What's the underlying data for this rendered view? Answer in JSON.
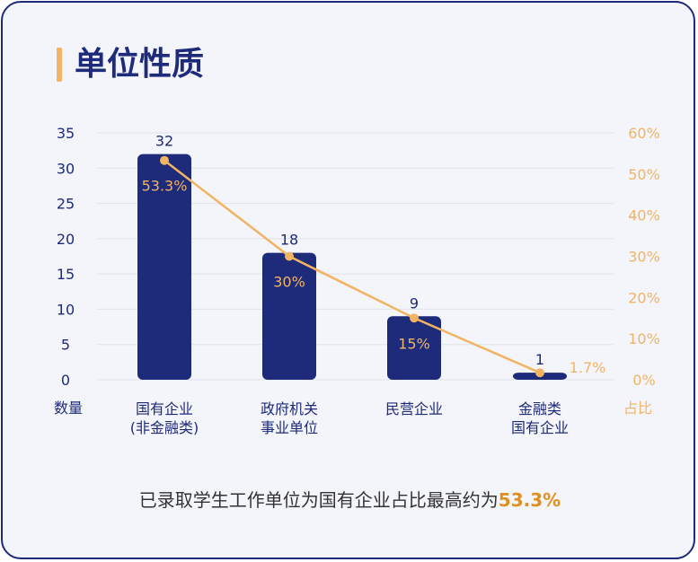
{
  "header": {
    "title": "单位性质"
  },
  "chart_data": {
    "type": "bar",
    "categories": [
      [
        "国有企业",
        "(非金融类)"
      ],
      [
        "政府机关",
        "事业单位"
      ],
      [
        "民营企业"
      ],
      [
        "金融类",
        "国有企业"
      ]
    ],
    "series": [
      {
        "values": [
          32,
          18,
          9,
          1
        ]
      },
      {
        "values": [
          53.3,
          30,
          15,
          1.7
        ]
      }
    ],
    "value_labels": [
      "32",
      "18",
      "9",
      "1"
    ],
    "percent_labels": [
      "53.3%",
      "30%",
      "15%",
      "1.7%"
    ],
    "ylabel": "数量",
    "ylim": [
      0,
      35
    ],
    "yticks": [
      "0",
      "5",
      "10",
      "15",
      "20",
      "25",
      "30",
      "35"
    ],
    "y2label": "占比",
    "y2lim": [
      0,
      60
    ],
    "y2ticks": [
      "0%",
      "10%",
      "20%",
      "30%",
      "40%",
      "50%",
      "60%"
    ],
    "grid": true,
    "bar_color": "#1e2a7a",
    "line_color": "#f0b462"
  },
  "footer": {
    "text": "已录取学生工作单位为国有企业占比最高约为",
    "highlight": "53.3%"
  },
  "colors": {
    "accent": "#f5b46a",
    "primary": "#1e2a7a",
    "highlight": "#e0901f"
  }
}
